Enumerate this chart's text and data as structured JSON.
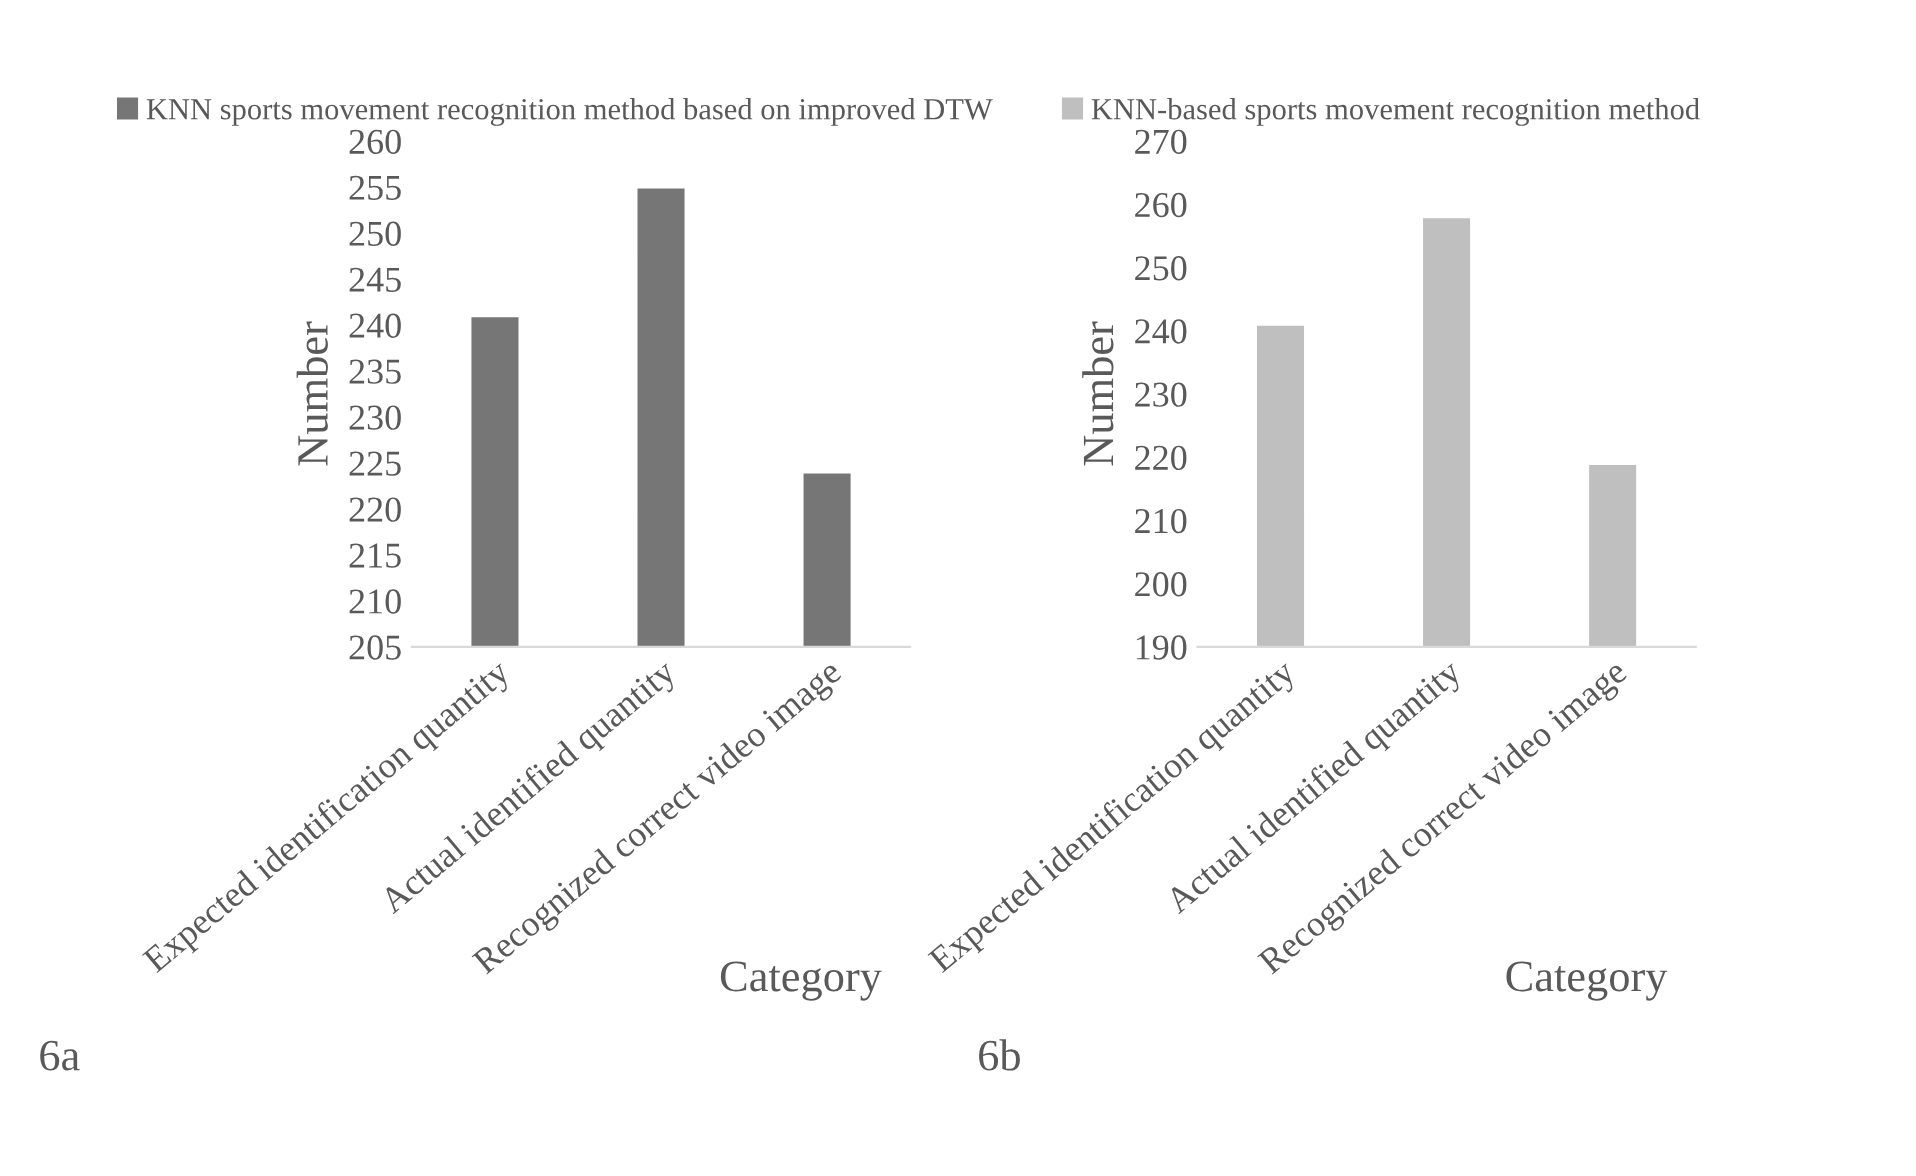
{
  "chart_data": [
    {
      "type": "bar",
      "categories": [
        "Expected identification quantity",
        "Actual identified quantity",
        "Recognized correct video image"
      ],
      "xlabel": "Category",
      "ylabel": "Number",
      "ylim": [
        205,
        260
      ],
      "yticks": [
        205,
        210,
        215,
        220,
        225,
        230,
        235,
        240,
        245,
        250,
        255,
        260
      ],
      "legend": "top left",
      "annotations": [
        "6a"
      ],
      "series": [
        {
          "name": "KNN sports movement recognition method based on improved DTW",
          "color": "#767676",
          "values": [
            241,
            255,
            224
          ]
        }
      ]
    },
    {
      "type": "bar",
      "categories": [
        "Expected identification quantity",
        "Actual identified quantity",
        "Recognized correct video image"
      ],
      "xlabel": "Category",
      "ylabel": "Number",
      "ylim": [
        190,
        270
      ],
      "yticks": [
        190,
        200,
        210,
        220,
        230,
        240,
        250,
        260,
        270
      ],
      "legend": "top left",
      "annotations": [
        "6b"
      ],
      "series": [
        {
          "name": "KNN-based sports movement recognition method",
          "color": "#bfbfbf",
          "values": [
            241,
            258,
            219
          ]
        }
      ]
    }
  ]
}
